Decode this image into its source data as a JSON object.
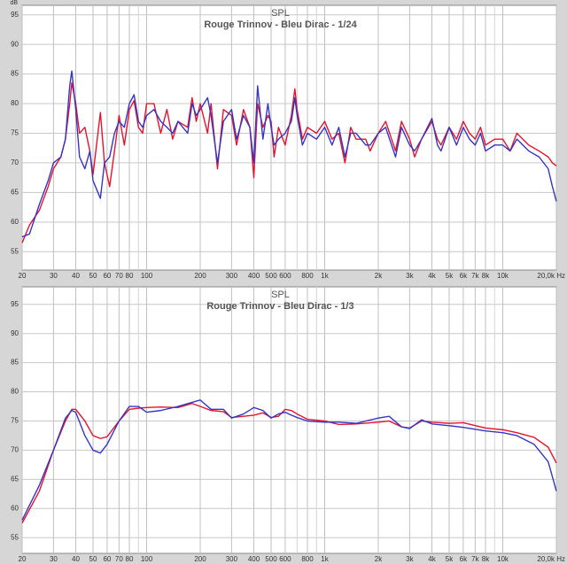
{
  "chart_data": [
    {
      "type": "line",
      "title": "SPL",
      "subtitle": "Rouge Trinnov - Bleu Dirac - 1/24",
      "y_label": "dB",
      "log_x": true,
      "grid": true,
      "xlim": [
        20,
        20000
      ],
      "ylim": [
        51.9,
        96.6
      ],
      "yticks": [
        55,
        60,
        65,
        70,
        75,
        80,
        85,
        90,
        95
      ],
      "xticks": [
        20,
        30,
        40,
        50,
        60,
        70,
        80,
        100,
        200,
        300,
        400,
        500,
        600,
        800,
        {
          "value": 1000,
          "label": "1k"
        },
        {
          "value": 2000,
          "label": "2k"
        },
        {
          "value": 3000,
          "label": "3k"
        },
        {
          "value": 4000,
          "label": "4k"
        },
        {
          "value": 5000,
          "label": "5k"
        },
        {
          "value": 6000,
          "label": "6k"
        },
        {
          "value": 7000,
          "label": "7k"
        },
        {
          "value": 8000,
          "label": "8k"
        },
        {
          "value": 10000,
          "label": "10k"
        },
        {
          "value": 20000,
          "label": "20,0k Hz"
        }
      ],
      "xticks_minor": [
        90,
        700,
        900,
        9000
      ],
      "x": [
        20,
        22,
        25,
        28,
        30,
        33,
        35,
        37,
        38,
        40,
        42,
        45,
        48,
        50,
        55,
        58,
        62,
        66,
        70,
        75,
        80,
        85,
        90,
        95,
        100,
        110,
        120,
        130,
        140,
        150,
        170,
        180,
        190,
        200,
        220,
        230,
        250,
        270,
        300,
        320,
        350,
        380,
        400,
        420,
        450,
        480,
        500,
        520,
        550,
        600,
        650,
        680,
        700,
        750,
        800,
        900,
        1000,
        1100,
        1200,
        1300,
        1400,
        1500,
        1700,
        1800,
        2000,
        2200,
        2500,
        2700,
        3000,
        3200,
        3500,
        4000,
        4300,
        4500,
        5000,
        5500,
        6000,
        6500,
        7000,
        7500,
        8000,
        9000,
        10000,
        11000,
        12000,
        14000,
        16000,
        18000,
        19000,
        20000
      ],
      "series": [
        {
          "color": "#e3142f",
          "values": [
            56.5,
            59.5,
            62,
            66,
            69,
            71,
            74,
            80,
            83.5,
            80,
            75,
            76,
            72,
            68,
            78.5,
            70,
            66,
            72,
            78,
            73,
            79,
            80.5,
            76,
            75,
            80,
            80,
            75,
            79,
            74,
            77,
            76,
            81,
            77,
            80,
            75,
            80,
            69,
            79,
            78,
            73,
            79,
            76,
            67.5,
            80,
            76,
            78,
            77,
            71,
            76,
            73,
            78,
            82.5,
            79,
            74,
            76,
            75,
            77,
            74,
            75,
            70,
            76,
            74,
            74,
            72,
            75,
            77,
            72,
            77,
            74,
            71,
            74,
            77,
            74,
            73,
            76,
            74,
            77,
            75,
            74,
            76,
            73,
            74,
            74,
            72,
            75,
            73,
            72,
            71,
            70,
            69.5
          ]
        },
        {
          "color": "#3535c4",
          "values": [
            57.5,
            58,
            63,
            67,
            70,
            71,
            74,
            83,
            85.5,
            79,
            71,
            69,
            72,
            67,
            64,
            70,
            71,
            75,
            77,
            76,
            80,
            81.5,
            77,
            76,
            78,
            79,
            77,
            76,
            75,
            77,
            75,
            80,
            78,
            79,
            81,
            78,
            70,
            77,
            79,
            74,
            78,
            76,
            70,
            83,
            74,
            80,
            76,
            73,
            74,
            75,
            77,
            81,
            78,
            73,
            75,
            74,
            76,
            73,
            76,
            71,
            75,
            75,
            73,
            73,
            75,
            76,
            71,
            76,
            73,
            72,
            74,
            77.5,
            73,
            72,
            76,
            73,
            76,
            74,
            73,
            75,
            72,
            73,
            73,
            72,
            74,
            72,
            71,
            69,
            66,
            63.5
          ]
        }
      ]
    },
    {
      "type": "line",
      "title": "SPL",
      "subtitle": "Rouge Trinnov - Bleu Dirac - 1/3",
      "log_x": true,
      "grid": true,
      "xlim": [
        20,
        20000
      ],
      "ylim": [
        52.3,
        98
      ],
      "yticks": [
        55,
        60,
        65,
        70,
        75,
        80,
        85,
        90,
        95
      ],
      "xticks": [
        20,
        30,
        40,
        50,
        60,
        70,
        80,
        100,
        200,
        300,
        400,
        500,
        600,
        800,
        {
          "value": 1000,
          "label": "1k"
        },
        {
          "value": 2000,
          "label": "2k"
        },
        {
          "value": 3000,
          "label": "3k"
        },
        {
          "value": 4000,
          "label": "4k"
        },
        {
          "value": 5000,
          "label": "5k"
        },
        {
          "value": 6000,
          "label": "6k"
        },
        {
          "value": 7000,
          "label": "7k"
        },
        {
          "value": 8000,
          "label": "8k"
        },
        {
          "value": 10000,
          "label": "10k"
        },
        {
          "value": 20000,
          "label": "20,0k Hz"
        }
      ],
      "xticks_minor": [
        90,
        700,
        900,
        9000
      ],
      "x": [
        20,
        25,
        30,
        35,
        38,
        40,
        45,
        50,
        55,
        60,
        70,
        80,
        90,
        100,
        120,
        150,
        180,
        200,
        230,
        270,
        300,
        350,
        400,
        450,
        500,
        550,
        600,
        650,
        700,
        800,
        1000,
        1200,
        1500,
        2000,
        2300,
        2700,
        3000,
        3500,
        4000,
        5000,
        6000,
        8000,
        10000,
        12000,
        15000,
        18000,
        20000
      ],
      "series": [
        {
          "color": "#e3142f",
          "values": [
            57.5,
            63,
            70,
            75,
            77,
            77,
            75,
            72.5,
            72,
            72.3,
            75,
            77,
            77.2,
            77.3,
            77.4,
            77.3,
            78,
            77.5,
            76.8,
            76.6,
            75.6,
            75.8,
            76,
            76.4,
            75.6,
            75.8,
            77,
            76.8,
            76.2,
            75.3,
            75,
            74.4,
            74.5,
            74.8,
            75,
            74,
            73.8,
            75,
            74.8,
            74.6,
            74.7,
            73.8,
            73.5,
            73,
            72.2,
            70.5,
            67.8
          ]
        },
        {
          "color": "#3535c4",
          "values": [
            58,
            64,
            70,
            75.5,
            76.8,
            76.5,
            72.5,
            70,
            69.5,
            71,
            75,
            77.5,
            77.5,
            76.5,
            76.8,
            77.5,
            78.2,
            78.6,
            77,
            77,
            75.5,
            76.2,
            77.3,
            76.8,
            75.5,
            76.2,
            76.5,
            76,
            75.6,
            75,
            74.8,
            74.8,
            74.6,
            75.5,
            75.8,
            74,
            73.7,
            75.2,
            74.5,
            74.2,
            73.9,
            73.3,
            73,
            72.5,
            71,
            68,
            63
          ]
        }
      ]
    }
  ]
}
